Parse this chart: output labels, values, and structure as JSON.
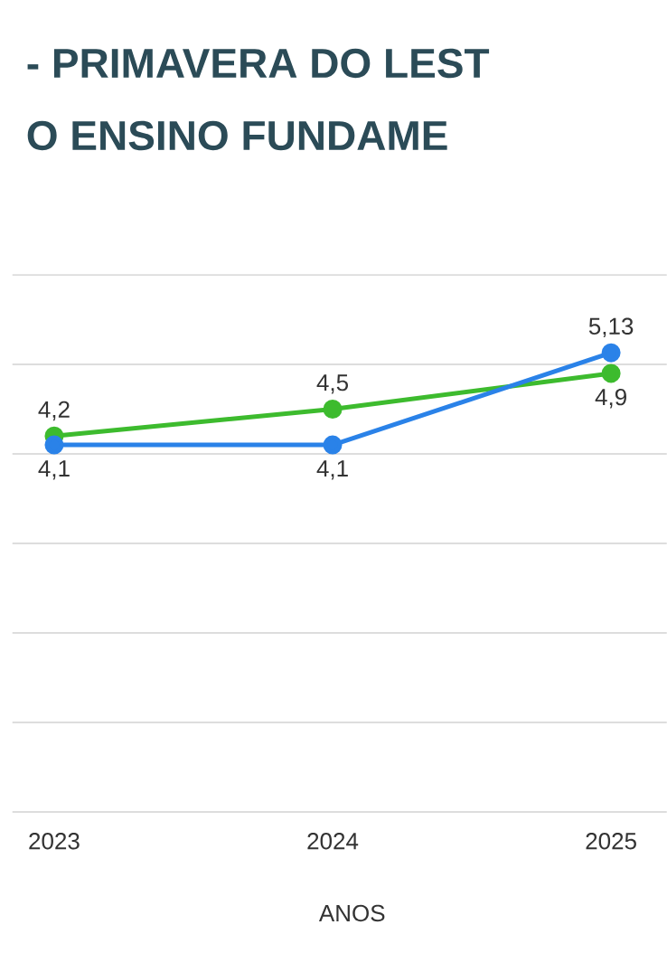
{
  "chart_data": {
    "type": "line",
    "title": "- PRIMAVERA DO LEST",
    "subtitle": "O ENSINO FUNDAME",
    "xlabel": "ANOS",
    "categories": [
      "2023",
      "2024",
      "2025"
    ],
    "series": [
      {
        "color": "#3dbb2e",
        "values": [
          4.2,
          4.5,
          4.9
        ],
        "value_labels": [
          "4,2",
          "4,5",
          "4,9"
        ]
      },
      {
        "color": "#2a82e8",
        "values": [
          4.1,
          4.1,
          5.13
        ],
        "value_labels": [
          "4,1",
          "4,1",
          "5,13"
        ]
      }
    ],
    "ylim": [
      0,
      6
    ],
    "yticks": [
      {
        "value": 0,
        "label": null
      },
      {
        "value": 1,
        "label": null
      },
      {
        "value": 2,
        "label": null
      },
      {
        "value": 3,
        "label": null
      },
      {
        "value": 4,
        "label": null
      },
      {
        "value": 5,
        "label": null
      },
      {
        "value": 6,
        "label": null
      }
    ],
    "grid": "y",
    "marker": "circle",
    "line_style": "solid",
    "tick_labels": "x"
  }
}
